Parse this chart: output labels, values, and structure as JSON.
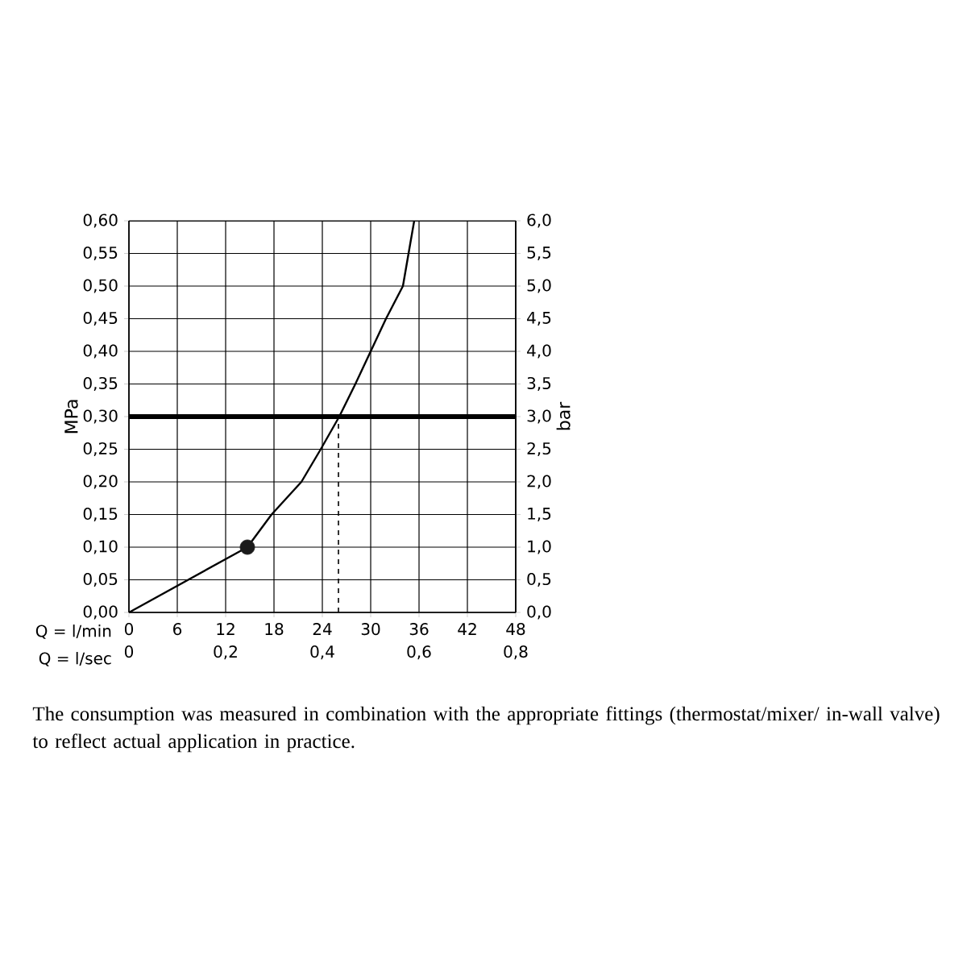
{
  "chart_data": {
    "type": "line",
    "xlabel": "Q = l/min",
    "x2label": "Q = l/sec",
    "ylabel": "MPa",
    "y2label": "bar",
    "xlim": [
      0,
      48
    ],
    "xticks": [
      0,
      6,
      12,
      18,
      24,
      30,
      36,
      42,
      48
    ],
    "x2lim": [
      0,
      0.8
    ],
    "x2ticks": [
      0,
      {
        "value": 0.2,
        "label": "0,2"
      },
      {
        "value": 0.4,
        "label": "0,4"
      },
      {
        "value": 0.6,
        "label": "0,6"
      },
      {
        "value": 0.8,
        "label": "0,8"
      }
    ],
    "ylim": [
      0,
      0.6
    ],
    "yticks": [
      {
        "value": 0,
        "label": "0,00"
      },
      {
        "value": 0.05,
        "label": "0,05"
      },
      {
        "value": 0.1,
        "label": "0,10"
      },
      {
        "value": 0.15,
        "label": "0,15"
      },
      {
        "value": 0.2,
        "label": "0,20"
      },
      {
        "value": 0.25,
        "label": "0,25"
      },
      {
        "value": 0.3,
        "label": "0,30"
      },
      {
        "value": 0.35,
        "label": "0,35"
      },
      {
        "value": 0.4,
        "label": "0,40"
      },
      {
        "value": 0.45,
        "label": "0,45"
      },
      {
        "value": 0.5,
        "label": "0,50"
      },
      {
        "value": 0.55,
        "label": "0,55"
      },
      {
        "value": 0.6,
        "label": "0,60"
      }
    ],
    "y2lim": [
      0,
      6
    ],
    "y2ticks": [
      {
        "value": 0,
        "label": "0,0"
      },
      {
        "value": 0.5,
        "label": "0,5"
      },
      {
        "value": 1,
        "label": "1,0"
      },
      {
        "value": 1.5,
        "label": "1,5"
      },
      {
        "value": 2,
        "label": "2,0"
      },
      {
        "value": 2.5,
        "label": "2,5"
      },
      {
        "value": 3,
        "label": "3,0"
      },
      {
        "value": 3.5,
        "label": "3,5"
      },
      {
        "value": 4,
        "label": "4,0"
      },
      {
        "value": 4.5,
        "label": "4,5"
      },
      {
        "value": 5,
        "label": "5,0"
      },
      {
        "value": 5.5,
        "label": "5,5"
      },
      {
        "value": 6,
        "label": "6,0"
      }
    ],
    "grid": true,
    "series": [
      {
        "color": "#000000",
        "marker": "none",
        "line_style": "solid",
        "x": [
          0,
          14.7,
          17.7,
          21.4,
          23.8,
          26.1,
          28.1,
          30.0,
          31.9,
          34.0,
          35.4
        ],
        "values": [
          0,
          0.1,
          0.15,
          0.2,
          0.25,
          0.3,
          0.35,
          0.4,
          0.45,
          0.5,
          0.6
        ]
      },
      {
        "type": "scatter",
        "color": "#1a1a1a",
        "marker": "circle",
        "x": [
          14.7
        ],
        "values": [
          0.1
        ]
      },
      {
        "type": "line",
        "color": "#000000",
        "marker": "none",
        "line_style": "dashed",
        "x": [
          26,
          26
        ],
        "values": [
          0,
          0.3
        ]
      }
    ],
    "ref_lines": [
      {
        "axis": "y",
        "value": 0.3,
        "color": "#000000"
      }
    ],
    "annotations": [
      "The consumption was measured in combination with the appropriate fittings (thermostat/mixer/ in-wall valve) to reflect actual application in practice."
    ]
  }
}
